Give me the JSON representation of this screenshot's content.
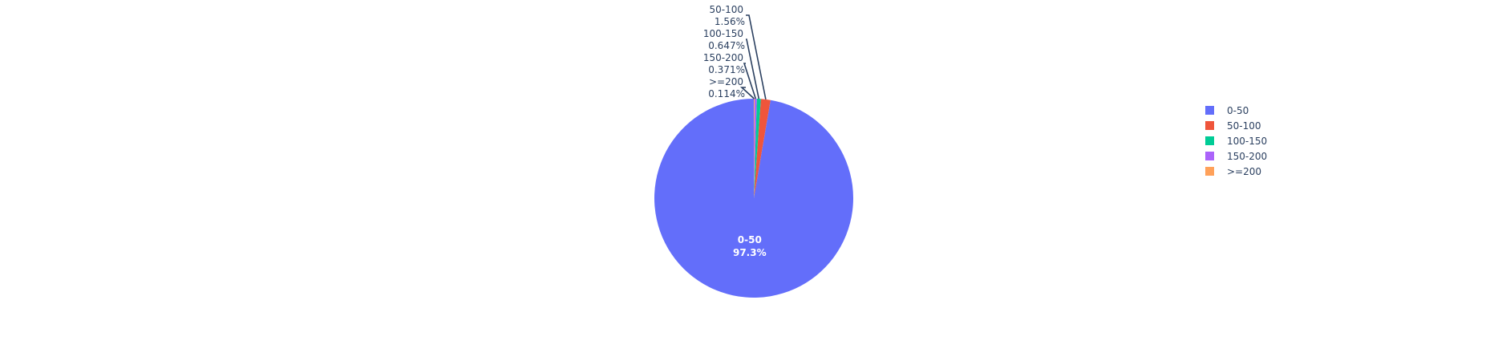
{
  "chart_data": {
    "type": "pie",
    "categories": [
      "0-50",
      "50-100",
      "100-150",
      "150-200",
      ">=200"
    ],
    "values": [
      97.3,
      1.56,
      0.647,
      0.371,
      0.114
    ],
    "value_labels": [
      "97.3%",
      "1.56%",
      "0.647%",
      "0.371%",
      "0.114%"
    ],
    "colors": [
      "#636efa",
      "#EF553B",
      "#00cc96",
      "#ab63fa",
      "#FFA15A"
    ],
    "legend_placement": "right",
    "direction": "counterclockwise",
    "start": "top"
  }
}
